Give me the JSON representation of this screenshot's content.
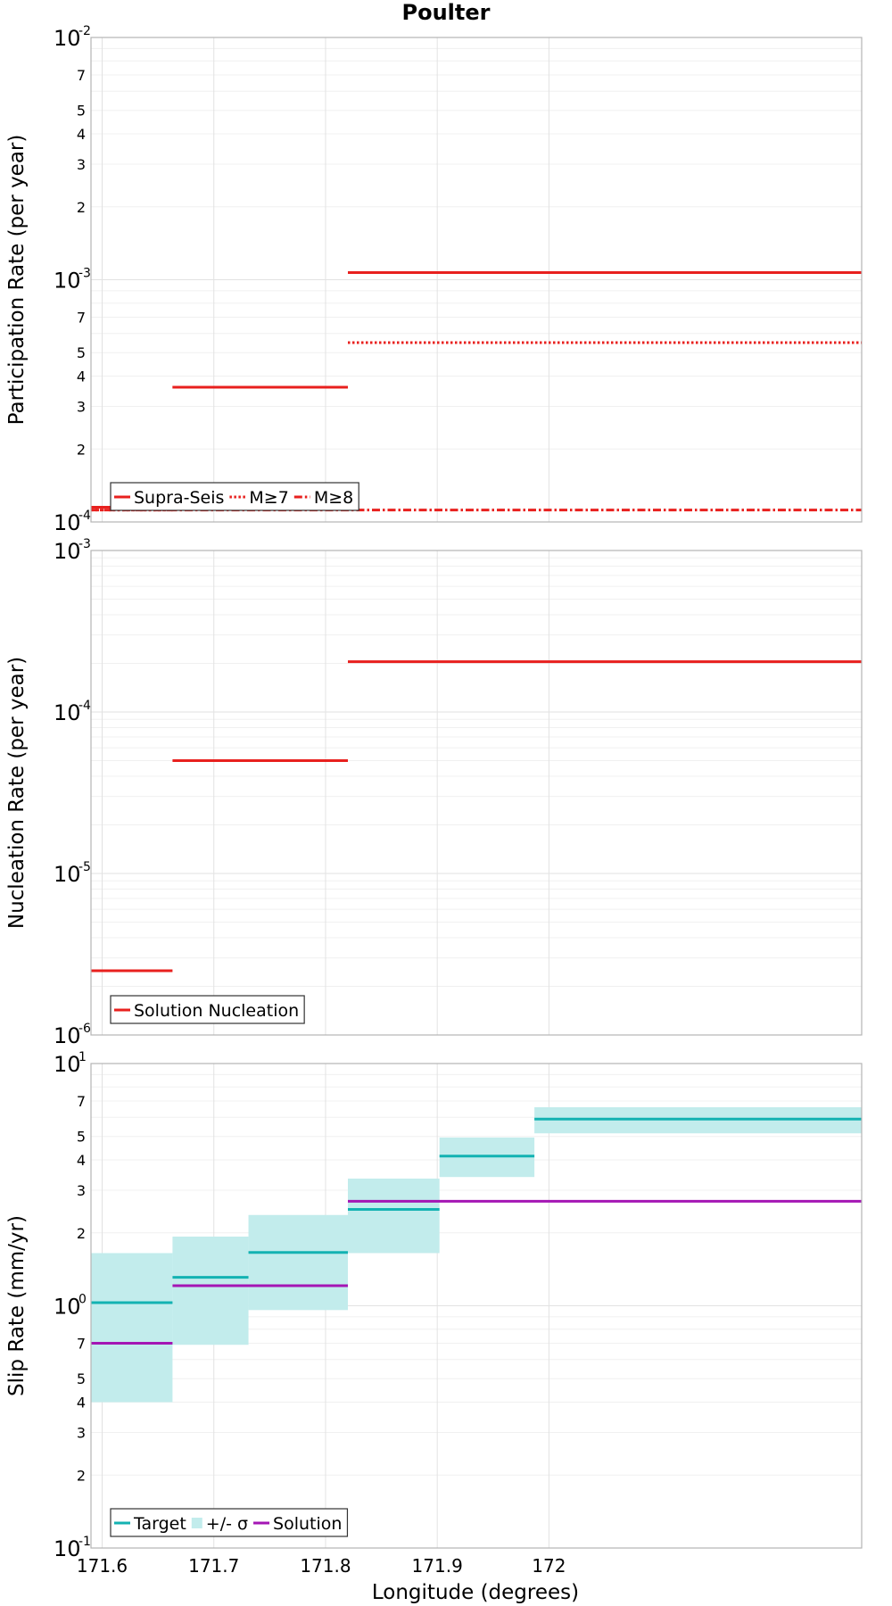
{
  "chart_data": {
    "type": "line",
    "title": "Poulter",
    "xlabel": "Longitude (degrees)",
    "xlim": [
      171.59,
      172.28
    ],
    "x_ticks": [
      "171.6",
      "171.7",
      "171.8",
      "171.9",
      "172"
    ],
    "panels": [
      {
        "ylabel": "Participation Rate (per year)",
        "yscale": "log",
        "ylim": [
          0.0001,
          0.01
        ],
        "y_major_ticks": [
          {
            "base": "10",
            "exp": "-4"
          },
          {
            "base": "10",
            "exp": "-3"
          },
          {
            "base": "10",
            "exp": "-2"
          }
        ],
        "y_minor_labels": [
          "2",
          "3",
          "4",
          "5",
          "7"
        ],
        "legend": {
          "position": "bottom-left",
          "entries": [
            {
              "label": "Supra-Seis",
              "color": "#e8201e",
              "style": "solid"
            },
            {
              "label": "M≥7",
              "color": "#e8201e",
              "style": "dotted"
            },
            {
              "label": "M≥8",
              "color": "#e8201e",
              "style": "dashdot"
            }
          ]
        },
        "series": [
          {
            "name": "Supra-Seis",
            "color": "#e8201e",
            "style": "solid",
            "segments": [
              {
                "x0": 171.59,
                "x1": 171.663,
                "y": 0.000115
              },
              {
                "x0": 171.663,
                "x1": 171.82,
                "y": 0.00036
              },
              {
                "x0": 171.82,
                "x1": 172.28,
                "y": 0.00107
              }
            ]
          },
          {
            "name": "M≥7",
            "color": "#e8201e",
            "style": "dotted",
            "segments": [
              {
                "x0": 171.59,
                "x1": 171.663,
                "y": 0.000112
              },
              {
                "x0": 171.663,
                "x1": 171.82,
                "y": 0.00036
              },
              {
                "x0": 171.82,
                "x1": 172.28,
                "y": 0.00055
              }
            ]
          },
          {
            "name": "M≥8",
            "color": "#e8201e",
            "style": "dashdot",
            "segments": [
              {
                "x0": 171.59,
                "x1": 172.28,
                "y": 0.000112
              }
            ]
          }
        ]
      },
      {
        "ylabel": "Nucleation Rate (per year)",
        "yscale": "log",
        "ylim": [
          1e-06,
          0.001
        ],
        "y_major_ticks": [
          {
            "base": "10",
            "exp": "-6"
          },
          {
            "base": "10",
            "exp": "-5"
          },
          {
            "base": "10",
            "exp": "-4"
          },
          {
            "base": "10",
            "exp": "-3"
          }
        ],
        "y_minor_labels": [],
        "legend": {
          "position": "bottom-left",
          "entries": [
            {
              "label": "Solution Nucleation",
              "color": "#e8201e",
              "style": "solid"
            }
          ]
        },
        "series": [
          {
            "name": "Solution Nucleation",
            "color": "#e8201e",
            "style": "solid",
            "segments": [
              {
                "x0": 171.59,
                "x1": 171.663,
                "y": 2.5e-06
              },
              {
                "x0": 171.663,
                "x1": 171.82,
                "y": 5e-05
              },
              {
                "x0": 171.82,
                "x1": 172.28,
                "y": 0.000205
              }
            ]
          }
        ]
      },
      {
        "ylabel": "Slip Rate (mm/yr)",
        "yscale": "log",
        "ylim": [
          0.1,
          10
        ],
        "y_major_ticks": [
          {
            "base": "10",
            "exp": "-1"
          },
          {
            "base": "10",
            "exp": "0"
          },
          {
            "base": "10",
            "exp": "1"
          }
        ],
        "y_minor_labels": [
          "2",
          "3",
          "4",
          "5",
          "7"
        ],
        "legend": {
          "position": "bottom-left",
          "entries": [
            {
              "label": "Target",
              "color": "#13b2b2",
              "style": "solid"
            },
            {
              "label": "+/- σ",
              "color": "#c2ecec",
              "style": "band"
            },
            {
              "label": "Solution",
              "color": "#a416b4",
              "style": "solid"
            }
          ]
        },
        "bands": [
          {
            "x0": 171.59,
            "x1": 171.663,
            "low": 0.4,
            "high": 1.65
          },
          {
            "x0": 171.663,
            "x1": 171.731,
            "low": 0.69,
            "high": 1.93
          },
          {
            "x0": 171.731,
            "x1": 171.82,
            "low": 0.96,
            "high": 2.37
          },
          {
            "x0": 171.82,
            "x1": 171.902,
            "low": 1.65,
            "high": 3.35
          },
          {
            "x0": 171.902,
            "x1": 171.987,
            "low": 3.4,
            "high": 4.95
          },
          {
            "x0": 171.987,
            "x1": 172.28,
            "low": 5.15,
            "high": 6.6
          }
        ],
        "series": [
          {
            "name": "Target",
            "color": "#13b2b2",
            "style": "solid",
            "segments": [
              {
                "x0": 171.59,
                "x1": 171.663,
                "y": 1.03
              },
              {
                "x0": 171.663,
                "x1": 171.731,
                "y": 1.31
              },
              {
                "x0": 171.731,
                "x1": 171.82,
                "y": 1.66
              },
              {
                "x0": 171.82,
                "x1": 171.902,
                "y": 2.5
              },
              {
                "x0": 171.902,
                "x1": 171.987,
                "y": 4.15
              },
              {
                "x0": 171.987,
                "x1": 172.28,
                "y": 5.9
              }
            ]
          },
          {
            "name": "Solution",
            "color": "#a416b4",
            "style": "solid",
            "segments": [
              {
                "x0": 171.59,
                "x1": 171.663,
                "y": 0.7
              },
              {
                "x0": 171.663,
                "x1": 171.82,
                "y": 1.21
              },
              {
                "x0": 171.82,
                "x1": 172.28,
                "y": 2.7
              }
            ]
          }
        ]
      }
    ]
  }
}
